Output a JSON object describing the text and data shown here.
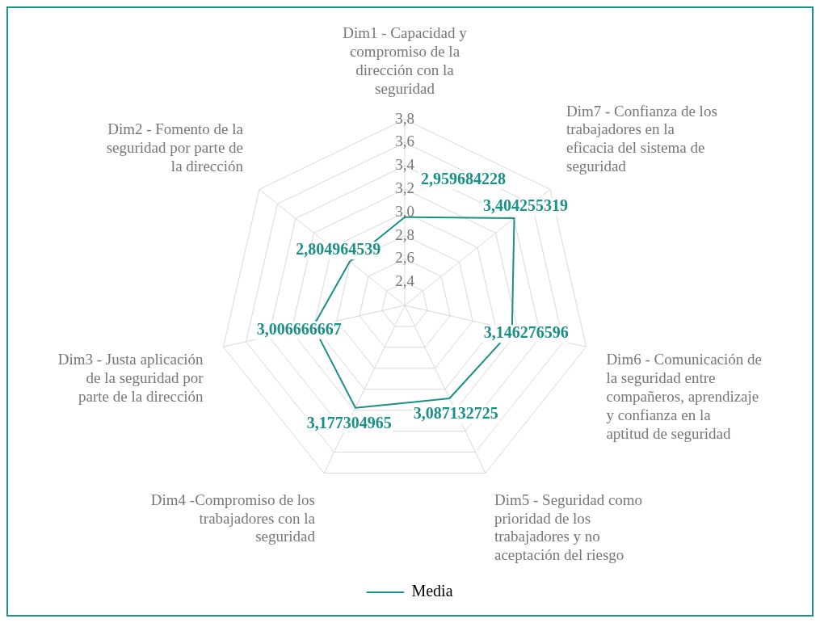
{
  "chart_data": {
    "type": "radar",
    "categories": [
      "Dim1 - Capacidad y compromiso de la dirección con la seguridad",
      "Dim7 - Confianza de los trabajadores en la eficacia del sistema de seguridad",
      "Dim6 - Comunicación de la seguridad entre compañeros, aprendizaje y confianza en la aptitud de seguridad",
      "Dim5 - Seguridad como prioridad de los trabajadores y no aceptación del riesgo",
      "Dim4 -Compromiso de los trabajadores con la seguridad",
      "Dim3 - Justa aplicación de la seguridad por parte de la dirección",
      "Dim2 - Fomento de la seguridad por parte de la dirección"
    ],
    "series": [
      {
        "name": "Media",
        "color": "#1a9088",
        "values": [
          2.959684228,
          3.404255319,
          3.146276596,
          3.087132725,
          3.177304965,
          3.006666667,
          2.804964539
        ],
        "value_labels": [
          "2,959684228",
          "3,404255319",
          "3,146276596",
          "3,087132725",
          "3,177304965",
          "3,006666667",
          "2,804964539"
        ]
      }
    ],
    "ylim": [
      2.2,
      3.8
    ],
    "yticks": [
      {
        "value": 2.4,
        "label": "2,4"
      },
      {
        "value": 2.6,
        "label": "2,6"
      },
      {
        "value": 2.8,
        "label": "2,8"
      },
      {
        "value": 3.0,
        "label": "3,0"
      },
      {
        "value": 3.2,
        "label": "3,2"
      },
      {
        "value": 3.4,
        "label": "3,4"
      },
      {
        "value": 3.6,
        "label": "3,6"
      },
      {
        "value": 3.8,
        "label": "3,8"
      }
    ],
    "grid": true,
    "legend": "bottom",
    "marker": "none",
    "line_style": "solid"
  }
}
